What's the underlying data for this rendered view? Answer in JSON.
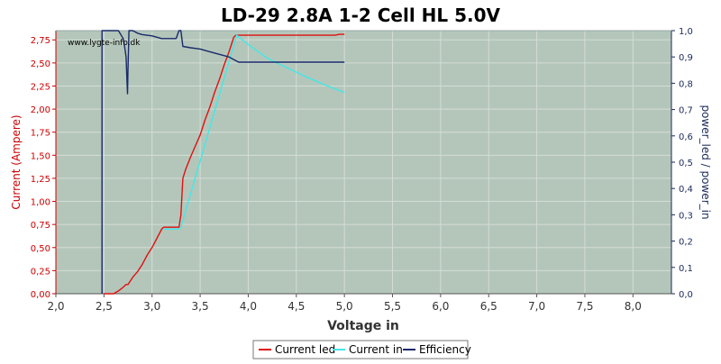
{
  "chart_data": {
    "type": "line",
    "title": "LD-29 2.8A 1-2 Cell HL 5.0V",
    "watermark": "www.lygte-info.dk",
    "xlabel": "Voltage in",
    "ylabel_left": "Current (Ampere)",
    "ylabel_right": "power_led / power_in",
    "xlim": [
      2.0,
      8.4
    ],
    "ylim_left": [
      0.0,
      2.85
    ],
    "ylim_right": [
      0.0,
      1.0
    ],
    "x_ticks": [
      "2,0",
      "2,5",
      "3,0",
      "3,5",
      "4,0",
      "4,5",
      "5,0",
      "5,5",
      "6,0",
      "6,5",
      "7,0",
      "7,5",
      "8,0"
    ],
    "y_ticks_left": [
      "0,00",
      "0,25",
      "0,50",
      "0,75",
      "1,00",
      "1,25",
      "1,50",
      "1,75",
      "2,00",
      "2,25",
      "2,50",
      "2,75"
    ],
    "y_ticks_right": [
      "0,0",
      "0,1",
      "0,2",
      "0,3",
      "0,4",
      "0,5",
      "0,6",
      "0,7",
      "0,8",
      "0,9",
      "1,0"
    ],
    "grid": true,
    "legend_position": "bottom",
    "colors": {
      "plot_bg": "#b4c6ba",
      "grid": "#d4ddd6",
      "axis_left": "#cc0000",
      "axis_right": "#1a2a5a"
    },
    "series": [
      {
        "name": "Current led",
        "axis": "left",
        "color": "#e01010",
        "points": [
          [
            2.5,
            0.0
          ],
          [
            2.6,
            0.0
          ],
          [
            2.65,
            0.03
          ],
          [
            2.7,
            0.07
          ],
          [
            2.73,
            0.1
          ],
          [
            2.75,
            0.1
          ],
          [
            2.8,
            0.18
          ],
          [
            2.85,
            0.24
          ],
          [
            2.9,
            0.32
          ],
          [
            2.95,
            0.42
          ],
          [
            3.0,
            0.5
          ],
          [
            3.05,
            0.6
          ],
          [
            3.1,
            0.7
          ],
          [
            3.12,
            0.72
          ],
          [
            3.2,
            0.72
          ],
          [
            3.25,
            0.72
          ],
          [
            3.28,
            0.72
          ],
          [
            3.3,
            0.85
          ],
          [
            3.32,
            1.25
          ],
          [
            3.35,
            1.35
          ],
          [
            3.4,
            1.48
          ],
          [
            3.45,
            1.6
          ],
          [
            3.5,
            1.72
          ],
          [
            3.55,
            1.88
          ],
          [
            3.6,
            2.02
          ],
          [
            3.65,
            2.18
          ],
          [
            3.7,
            2.32
          ],
          [
            3.75,
            2.48
          ],
          [
            3.8,
            2.62
          ],
          [
            3.85,
            2.78
          ],
          [
            3.87,
            2.8
          ],
          [
            4.0,
            2.8
          ],
          [
            4.5,
            2.8
          ],
          [
            4.9,
            2.8
          ],
          [
            4.95,
            2.81
          ],
          [
            5.0,
            2.81
          ]
        ]
      },
      {
        "name": "Current in",
        "axis": "left",
        "color": "#40e8e8",
        "points": [
          [
            3.12,
            0.7
          ],
          [
            3.28,
            0.7
          ],
          [
            3.3,
            0.72
          ],
          [
            3.88,
            2.8
          ],
          [
            4.0,
            2.7
          ],
          [
            4.2,
            2.55
          ],
          [
            4.4,
            2.45
          ],
          [
            4.6,
            2.35
          ],
          [
            4.8,
            2.26
          ],
          [
            5.0,
            2.18
          ]
        ]
      },
      {
        "name": "Efficiency",
        "axis": "right",
        "color": "#1a2a6a",
        "points": [
          [
            2.48,
            0.0
          ],
          [
            2.48,
            1.0
          ],
          [
            2.5,
            1.0
          ],
          [
            2.52,
            1.0
          ],
          [
            2.55,
            1.0
          ],
          [
            2.6,
            1.0
          ],
          [
            2.65,
            1.0
          ],
          [
            2.7,
            0.97
          ],
          [
            2.71,
            0.95
          ],
          [
            2.73,
            0.9
          ],
          [
            2.74,
            0.8
          ],
          [
            2.745,
            0.76
          ],
          [
            2.75,
            0.85
          ],
          [
            2.76,
            1.0
          ],
          [
            2.8,
            1.0
          ],
          [
            2.85,
            0.99
          ],
          [
            2.9,
            0.985
          ],
          [
            3.0,
            0.98
          ],
          [
            3.1,
            0.97
          ],
          [
            3.2,
            0.97
          ],
          [
            3.25,
            0.97
          ],
          [
            3.28,
            1.0
          ],
          [
            3.3,
            1.0
          ],
          [
            3.32,
            0.94
          ],
          [
            3.4,
            0.935
          ],
          [
            3.5,
            0.93
          ],
          [
            3.6,
            0.92
          ],
          [
            3.7,
            0.91
          ],
          [
            3.8,
            0.9
          ],
          [
            3.85,
            0.89
          ],
          [
            3.9,
            0.88
          ],
          [
            4.0,
            0.88
          ],
          [
            4.5,
            0.88
          ],
          [
            5.0,
            0.88
          ]
        ]
      }
    ]
  }
}
